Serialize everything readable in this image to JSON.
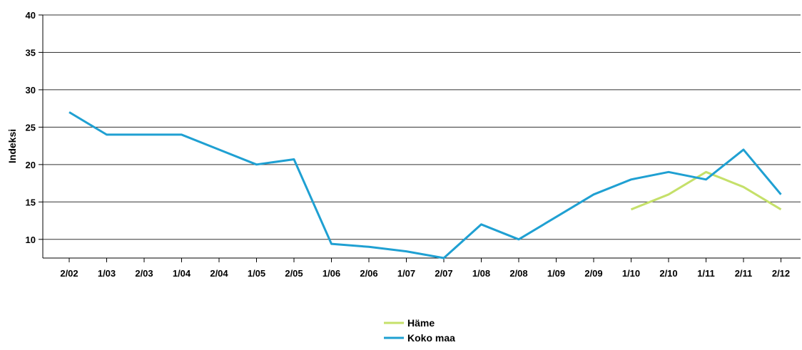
{
  "chart_data": {
    "type": "line",
    "title": "",
    "xlabel": "",
    "ylabel": "Indeksi",
    "categories": [
      "2/02",
      "1/03",
      "2/03",
      "1/04",
      "2/04",
      "1/05",
      "2/05",
      "1/06",
      "2/06",
      "1/07",
      "2/07",
      "1/08",
      "2/08",
      "1/09",
      "2/09",
      "1/10",
      "2/10",
      "1/11",
      "2/11",
      "2/12"
    ],
    "ylim": [
      7.5,
      40
    ],
    "yticks": [
      10,
      15,
      20,
      25,
      30,
      35,
      40
    ],
    "grid": true,
    "legend_position": "bottom",
    "series": [
      {
        "name": "Häme",
        "color": "#c5e06a",
        "values": [
          null,
          null,
          null,
          null,
          null,
          null,
          null,
          null,
          null,
          null,
          null,
          null,
          null,
          null,
          null,
          14,
          16,
          19,
          17,
          14
        ]
      },
      {
        "name": "Koko maa",
        "color": "#1fa0d2",
        "values": [
          27,
          24,
          24,
          24,
          22,
          20,
          20.7,
          9.4,
          9,
          8.4,
          7.5,
          12,
          10,
          13,
          16,
          18,
          19,
          18,
          22,
          16
        ]
      }
    ]
  }
}
